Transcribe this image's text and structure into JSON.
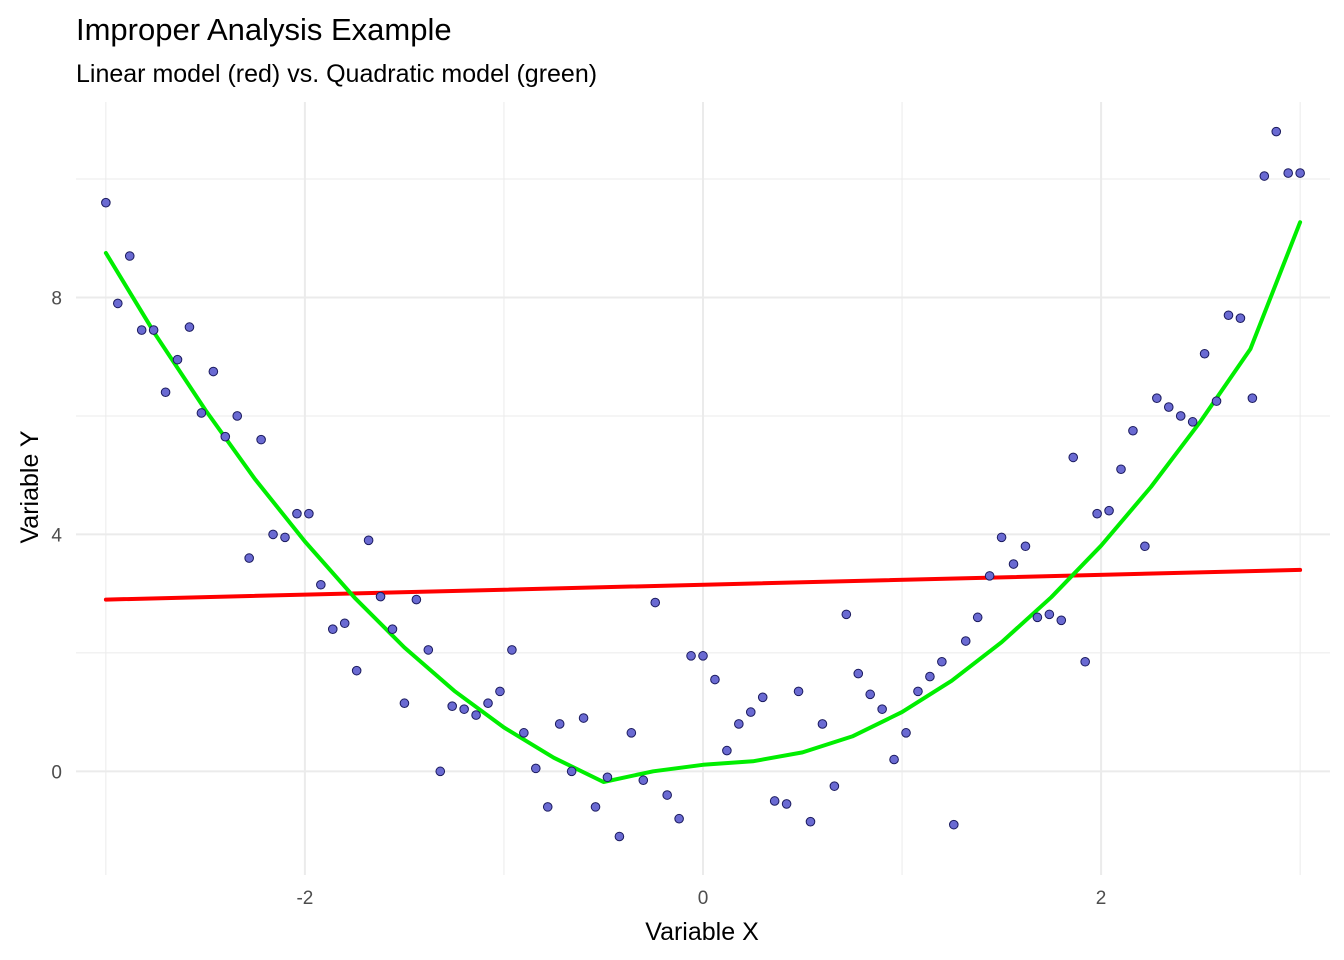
{
  "chart_data": {
    "type": "scatter",
    "title": "Improper Analysis Example",
    "subtitle": "Linear model (red) vs. Quadratic model (green)",
    "xlabel": "Variable X",
    "ylabel": "Variable Y",
    "xlim": [
      -3.15,
      3.15
    ],
    "ylim": [
      -1.75,
      11.3
    ],
    "x_ticks": [
      -2,
      0,
      2
    ],
    "x_tick_labels": [
      "-2",
      "0",
      "2"
    ],
    "y_ticks": [
      0,
      4,
      8
    ],
    "y_tick_labels": [
      "0",
      "4",
      "8"
    ],
    "grid": true,
    "legend": "none",
    "colors": {
      "points_fill": "#6a6ad2",
      "points_edge": "#1a1a5e",
      "linear": "#ff0000",
      "quadratic": "#00ee00",
      "grid": "#ebebeb"
    },
    "points": {
      "x": [
        -3.0,
        -2.94,
        -2.88,
        -2.82,
        -2.76,
        -2.7,
        -2.64,
        -2.58,
        -2.52,
        -2.46,
        -2.4,
        -2.34,
        -2.28,
        -2.22,
        -2.16,
        -2.1,
        -2.04,
        -1.98,
        -1.92,
        -1.86,
        -1.8,
        -1.74,
        -1.68,
        -1.62,
        -1.56,
        -1.5,
        -1.44,
        -1.38,
        -1.32,
        -1.26,
        -1.2,
        -1.14,
        -1.08,
        -1.02,
        -0.96,
        -0.9,
        -0.84,
        -0.78,
        -0.72,
        -0.66,
        -0.6,
        -0.54,
        -0.48,
        -0.42,
        -0.36,
        -0.3,
        -0.24,
        -0.18,
        -0.12,
        -0.06,
        0.0,
        0.06,
        0.12,
        0.18,
        0.24,
        0.3,
        0.36,
        0.42,
        0.48,
        0.54,
        0.6,
        0.66,
        0.72,
        0.78,
        0.84,
        0.9,
        0.96,
        1.02,
        1.08,
        1.14,
        1.2,
        1.26,
        1.32,
        1.38,
        1.44,
        1.5,
        1.56,
        1.62,
        1.68,
        1.74,
        1.8,
        1.86,
        1.92,
        1.98,
        2.04,
        2.1,
        2.16,
        2.22,
        2.28,
        2.34,
        2.4,
        2.46,
        2.52,
        2.58,
        2.64,
        2.7,
        2.76,
        2.82,
        2.88,
        2.94,
        3.0
      ],
      "y": [
        9.6,
        7.9,
        8.7,
        7.45,
        7.45,
        6.4,
        6.95,
        7.5,
        6.05,
        6.75,
        5.65,
        6.0,
        3.6,
        5.6,
        4.0,
        3.95,
        4.35,
        4.35,
        3.15,
        2.4,
        2.5,
        1.7,
        3.9,
        2.95,
        2.4,
        1.15,
        2.9,
        2.05,
        0.0,
        1.1,
        1.05,
        0.95,
        1.15,
        1.35,
        2.05,
        0.65,
        0.05,
        -0.6,
        0.8,
        0.0,
        0.9,
        -0.6,
        -0.1,
        -1.1,
        0.65,
        -0.15,
        2.85,
        -0.4,
        -0.8,
        1.95,
        1.95,
        1.55,
        0.35,
        0.8,
        1.0,
        1.25,
        -0.5,
        -0.55,
        1.35,
        -0.85,
        0.8,
        -0.25,
        2.65,
        1.65,
        1.3,
        1.05,
        0.2,
        0.65,
        1.35,
        1.6,
        1.85,
        -0.9,
        2.2,
        2.6,
        3.3,
        3.95,
        3.5,
        3.8,
        2.6,
        2.65,
        2.55,
        5.3,
        1.85,
        4.35,
        4.4,
        5.1,
        5.75,
        3.8,
        6.3,
        6.15,
        6.0,
        5.9,
        7.05,
        6.25,
        7.7,
        7.65,
        6.3,
        10.05,
        10.8,
        10.1,
        10.1
      ]
    },
    "series": [
      {
        "model": "linear",
        "x": [
          -3.0,
          3.0
        ],
        "y": [
          2.9,
          3.4
        ]
      },
      {
        "model": "quadratic",
        "x": [
          -3.0,
          -2.75,
          -2.5,
          -2.25,
          -2.0,
          -1.75,
          -1.5,
          -1.25,
          -1.0,
          -0.75,
          -0.5,
          -0.25,
          0.0,
          0.25,
          0.5,
          0.75,
          1.0,
          1.25,
          1.5,
          1.75,
          2.0,
          2.25,
          2.5,
          2.75,
          3.0
        ],
        "y": [
          8.75,
          7.37,
          6.1,
          4.93,
          3.88,
          2.93,
          2.09,
          1.36,
          0.74,
          0.23,
          -0.18,
          0.0,
          0.11,
          0.17,
          0.32,
          0.59,
          1.0,
          1.53,
          2.18,
          2.94,
          3.81,
          4.8,
          5.91,
          7.13,
          9.27
        ]
      }
    ]
  }
}
